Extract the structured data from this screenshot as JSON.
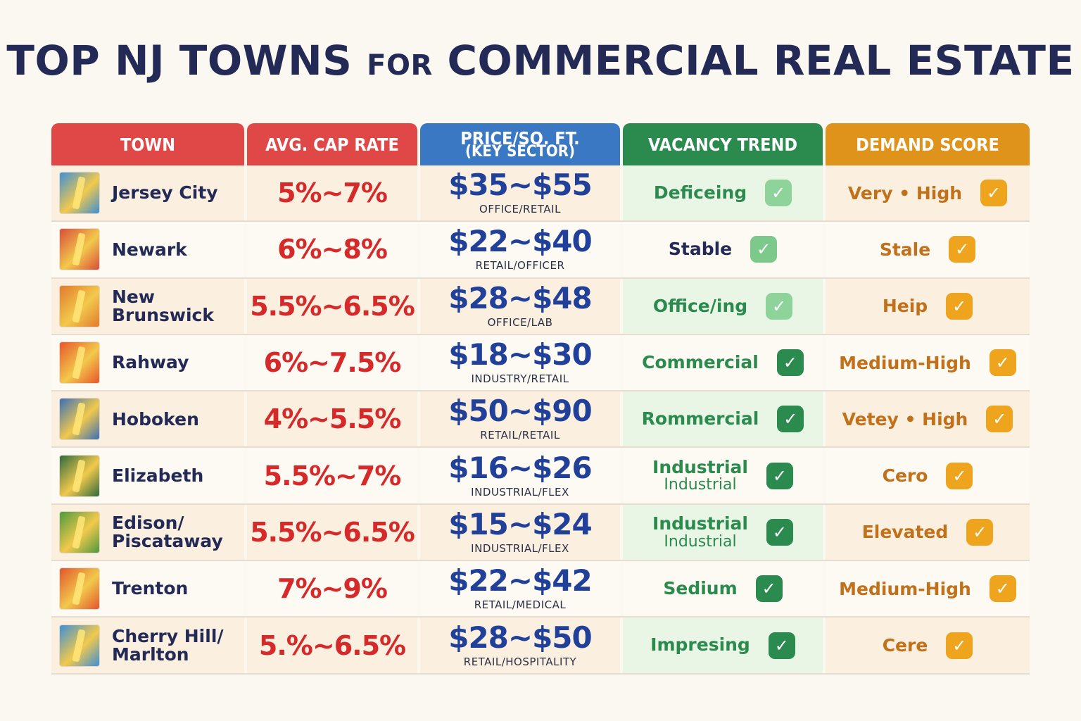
{
  "title": {
    "part1": "TOP NJ TOWNS ",
    "part2": "FOR",
    "part3": " COMMERCIAL REAL ESTATE"
  },
  "headers": {
    "town": "TOWN",
    "cap": "AVG. CAP RATE",
    "price_line1": "PRICE/SQ. FT.",
    "price_line2": "(KEY SECTOR)",
    "vacancy": "VACANCY TREND",
    "demand": "DEMAND SCORE"
  },
  "colors": {
    "town_header": "#e04848",
    "cap_header": "#e04848",
    "price_header": "#3a78c4",
    "vacancy_header": "#2b8a4e",
    "demand_header": "#e0931b"
  },
  "rows": [
    {
      "town_line1": "Jersey City",
      "town_line2": "",
      "flag_color": "#3d8fd6",
      "cap": "5%~7%",
      "price": "$35~$55",
      "sector": "OFFICE/RETAIL",
      "vac_line1": "Deficeing",
      "vac_line2": "",
      "vac_color": "#2b8a4e",
      "check_color": "#8dd39a",
      "demand": "Very • High"
    },
    {
      "town_line1": "Newark",
      "town_line2": "",
      "flag_color": "#d94d3a",
      "cap": "6%~8%",
      "price": "$22~$40",
      "sector": "RETAIL/OFFICER",
      "vac_line1": "Stable",
      "vac_line2": "",
      "vac_color": "#232a55",
      "check_color": "#7cc98b",
      "demand": "Stale"
    },
    {
      "town_line1": "New Brunswick",
      "town_line2": "",
      "flag_color": "#e27a2c",
      "cap": "5.5%~6.5%",
      "price": "$28~$48",
      "sector": "OFFICE/LAB",
      "vac_line1": "Office/ing",
      "vac_line2": "",
      "vac_color": "#2b8a4e",
      "check_color": "#8dd39a",
      "demand": "Heip"
    },
    {
      "town_line1": "Rahway",
      "town_line2": "",
      "flag_color": "#e8562a",
      "cap": "6%~7.5%",
      "price": "$18~$30",
      "sector": "INDUSTRY/RETAIL",
      "vac_line1": "Commercial",
      "vac_line2": "",
      "vac_color": "#2b8a4e",
      "check_color": "#2b8a4e",
      "demand": "Medium-High"
    },
    {
      "town_line1": "Hoboken",
      "town_line2": "",
      "flag_color": "#3a6fb8",
      "cap": "4%~5.5%",
      "price": "$50~$90",
      "sector": "RETAIL/RETAIL",
      "vac_line1": "Rommercial",
      "vac_line2": "",
      "vac_color": "#2b8a4e",
      "check_color": "#2b8a4e",
      "demand": "Vetey • High"
    },
    {
      "town_line1": "Elizabeth",
      "town_line2": "",
      "flag_color": "#2f6b3d",
      "cap": "5.5%~7%",
      "price": "$16~$26",
      "sector": "INDUSTRIAL/FLEX",
      "vac_line1": "Industrial",
      "vac_line2": "Industrial",
      "vac_color": "#2b8a4e",
      "check_color": "#2b8a4e",
      "demand": "Cero"
    },
    {
      "town_line1": "Edison/",
      "town_line2": "Piscataway",
      "flag_color": "#4d9a3c",
      "cap": "5.5%~6.5%",
      "price": "$15~$24",
      "sector": "INDUSTRIAL/FLEX",
      "vac_line1": "Industrial",
      "vac_line2": "Industrial",
      "vac_color": "#2b8a4e",
      "check_color": "#2b8a4e",
      "demand": "Elevated"
    },
    {
      "town_line1": "Trenton",
      "town_line2": "",
      "flag_color": "#e2562c",
      "cap": "7%~9%",
      "price": "$22~$42",
      "sector": "RETAIL/MEDICAL",
      "vac_line1": "Sedium",
      "vac_line2": "",
      "vac_color": "#2b8a4e",
      "check_color": "#2b8a4e",
      "demand": "Medium-High"
    },
    {
      "town_line1": "Cherry Hill/",
      "town_line2": "Marlton",
      "flag_color": "#3d8fd6",
      "cap": "5.%~6.5%",
      "price": "$28~$50",
      "sector": "RETAIL/HOSPITALITY",
      "vac_line1": "Impresing",
      "vac_line2": "",
      "vac_color": "#2b8a4e",
      "check_color": "#2b8a4e",
      "demand": "Cere"
    }
  ]
}
